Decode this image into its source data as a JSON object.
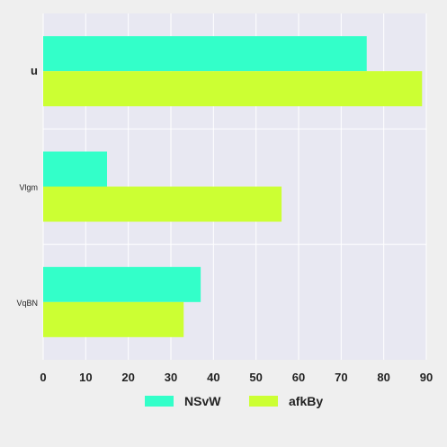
{
  "chart_data": {
    "type": "bar",
    "orientation": "horizontal",
    "title": "",
    "xlabel": "",
    "ylabel": "",
    "categories": [
      "u",
      "Vlgm",
      "VqBN"
    ],
    "series": [
      {
        "name": "NSvW",
        "values": [
          76,
          15,
          37
        ],
        "color": "#33ffc9"
      },
      {
        "name": "afkBy",
        "values": [
          89,
          56,
          33
        ],
        "color": "#ccff33"
      }
    ],
    "xlim": [
      0,
      90
    ],
    "xticks": [
      0,
      10,
      20,
      30,
      40,
      50,
      60,
      70,
      80,
      90
    ],
    "grid": true,
    "legend_position": "bottom",
    "colors": {
      "background": "#efefef",
      "plot_background": "#e8e8f2",
      "grid": "#ffffff"
    }
  }
}
